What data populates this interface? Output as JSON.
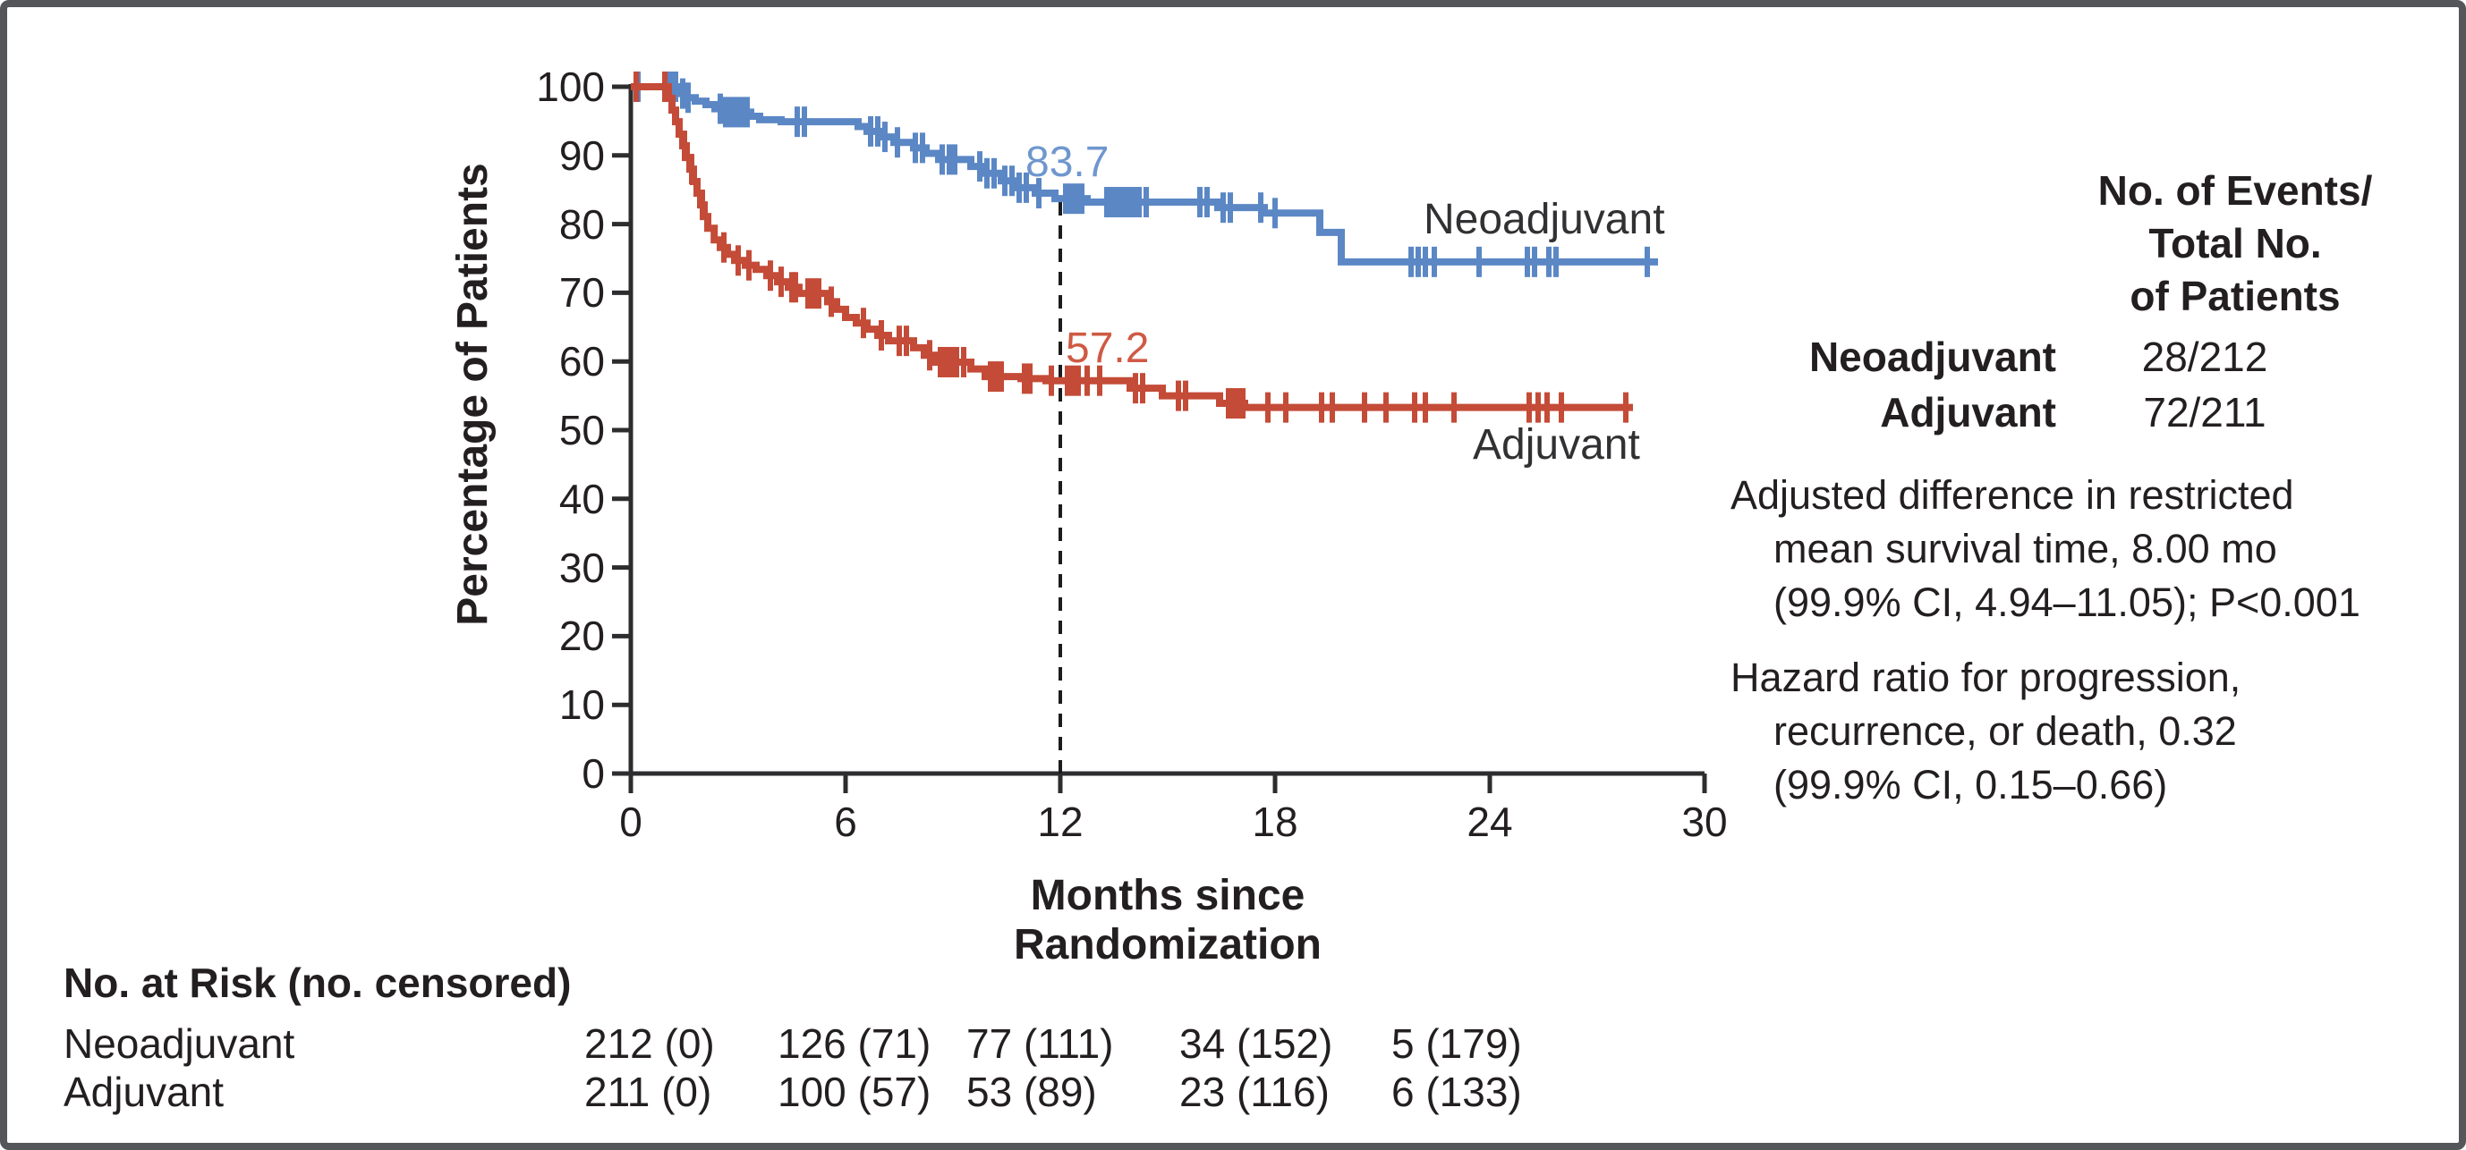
{
  "figure": {
    "background": "#ffffff",
    "border_color": "#55565a",
    "text_color": "#231f20",
    "axis_color": "#2d2d2f"
  },
  "chart_data": {
    "type": "line",
    "subtype": "kaplan-meier-step",
    "title": "",
    "xlabel": "Months since Randomization",
    "ylabel": "Percentage of Patients",
    "xlim": [
      0,
      30
    ],
    "ylim": [
      0,
      100
    ],
    "xticks": [
      0,
      6,
      12,
      18,
      24,
      30
    ],
    "yticks": [
      0,
      10,
      20,
      30,
      40,
      50,
      60,
      70,
      80,
      90,
      100
    ],
    "grid": false,
    "dashed_line": {
      "month": 12,
      "top_percent": 83.7,
      "color": "#1c1c1c"
    },
    "series": [
      {
        "name": "Neoadjuvant",
        "color": "#5b87c5",
        "label_color": "#6f97ce",
        "annotation": {
          "text": "83.7",
          "month": 12,
          "value": 83.7
        },
        "end_month": 28.7,
        "steps": [
          [
            0,
            100
          ],
          [
            1.35,
            99.0
          ],
          [
            1.55,
            98.4
          ],
          [
            1.8,
            97.9
          ],
          [
            2.1,
            97.4
          ],
          [
            2.35,
            96.8
          ],
          [
            2.6,
            96.3
          ],
          [
            3.35,
            95.7
          ],
          [
            3.6,
            95.2
          ],
          [
            4.2,
            94.9
          ],
          [
            6.35,
            94.2
          ],
          [
            6.6,
            93.5
          ],
          [
            7.0,
            92.7
          ],
          [
            7.35,
            91.9
          ],
          [
            7.9,
            91.1
          ],
          [
            8.25,
            90.3
          ],
          [
            8.6,
            89.4
          ],
          [
            9.5,
            88.4
          ],
          [
            9.9,
            87.4
          ],
          [
            10.35,
            86.3
          ],
          [
            10.7,
            85.3
          ],
          [
            11.3,
            84.5
          ],
          [
            11.85,
            83.7
          ],
          [
            12.75,
            83.2
          ],
          [
            16.4,
            82.4
          ],
          [
            17.7,
            81.6
          ],
          [
            19.25,
            78.8
          ],
          [
            19.85,
            74.5
          ]
        ],
        "censor_months": [
          0.2,
          1.1,
          1.25,
          1.45,
          1.6,
          2.5,
          2.65,
          2.8,
          2.95,
          3.1,
          3.25,
          4.65,
          4.85,
          6.7,
          6.9,
          7.1,
          7.45,
          7.95,
          8.15,
          8.7,
          8.9,
          9.05,
          9.75,
          9.95,
          10.15,
          10.45,
          10.65,
          10.85,
          11.05,
          11.4,
          12.15,
          12.3,
          12.45,
          12.6,
          13.3,
          13.45,
          13.6,
          13.75,
          13.9,
          14.05,
          14.2,
          14.4,
          15.9,
          16.1,
          16.55,
          16.75,
          17.6,
          18.0,
          21.8,
          22.0,
          22.2,
          22.45,
          23.7,
          25.05,
          25.25,
          25.65,
          25.85,
          28.4
        ]
      },
      {
        "name": "Adjuvant",
        "color": "#c44b37",
        "label_color": "#cf5a44",
        "annotation": {
          "text": "57.2",
          "month": 12,
          "value": 57.2
        },
        "end_month": 28.0,
        "steps": [
          [
            0,
            100
          ],
          [
            1.05,
            98.3
          ],
          [
            1.15,
            96.6
          ],
          [
            1.25,
            94.9
          ],
          [
            1.35,
            93.1
          ],
          [
            1.45,
            91.4
          ],
          [
            1.55,
            89.7
          ],
          [
            1.65,
            88.0
          ],
          [
            1.75,
            86.2
          ],
          [
            1.85,
            84.5
          ],
          [
            1.95,
            82.8
          ],
          [
            2.05,
            81.1
          ],
          [
            2.15,
            79.4
          ],
          [
            2.33,
            77.7
          ],
          [
            2.5,
            76.6
          ],
          [
            2.7,
            75.6
          ],
          [
            2.9,
            74.7
          ],
          [
            3.2,
            74.0
          ],
          [
            3.5,
            73.4
          ],
          [
            3.8,
            72.5
          ],
          [
            4.1,
            71.6
          ],
          [
            4.4,
            70.8
          ],
          [
            4.7,
            69.9
          ],
          [
            5.5,
            68.7
          ],
          [
            5.75,
            67.6
          ],
          [
            6.0,
            66.4
          ],
          [
            6.3,
            65.6
          ],
          [
            6.6,
            64.7
          ],
          [
            6.9,
            63.8
          ],
          [
            7.2,
            63.0
          ],
          [
            7.9,
            62.0
          ],
          [
            8.2,
            60.9
          ],
          [
            8.5,
            59.9
          ],
          [
            9.5,
            58.9
          ],
          [
            9.9,
            57.8
          ],
          [
            10.9,
            57.5
          ],
          [
            11.6,
            57.2
          ],
          [
            13.95,
            56.1
          ],
          [
            14.85,
            55.0
          ],
          [
            16.45,
            53.9
          ],
          [
            17.15,
            53.3
          ]
        ],
        "censor_months": [
          0.15,
          0.95,
          1.5,
          1.7,
          2.0,
          2.6,
          3.0,
          3.3,
          3.9,
          4.2,
          4.5,
          4.6,
          4.95,
          5.1,
          5.25,
          5.6,
          6.5,
          7.0,
          7.5,
          7.7,
          8.35,
          8.65,
          8.8,
          8.95,
          9.1,
          9.3,
          10.05,
          10.2,
          10.35,
          11.0,
          11.15,
          11.75,
          12.2,
          12.35,
          12.5,
          12.75,
          13.1,
          14.1,
          14.3,
          15.3,
          15.5,
          16.7,
          16.85,
          17.0,
          17.1,
          17.8,
          18.3,
          19.3,
          19.6,
          20.5,
          21.1,
          21.9,
          22.2,
          23.0,
          25.1,
          25.35,
          25.6,
          26.0,
          27.8
        ]
      }
    ]
  },
  "side_panel": {
    "header_lines": [
      "No. of Events/",
      "Total No.",
      "of Patients"
    ],
    "rows": [
      {
        "label": "Neoadjuvant",
        "value": "28/212"
      },
      {
        "label": "Adjuvant",
        "value": "72/211"
      }
    ],
    "stat_blocks": [
      {
        "lines": [
          {
            "text": "Adjusted difference in restricted",
            "indent": false
          },
          {
            "text": "mean survival time, 8.00 mo",
            "indent": true
          },
          {
            "text": "(99.9% CI, 4.94–11.05); P<0.001",
            "indent": true
          }
        ]
      },
      {
        "lines": [
          {
            "text": "Hazard ratio for progression,",
            "indent": false
          },
          {
            "text": "recurrence, or death, 0.32",
            "indent": true
          },
          {
            "text": "(99.9% CI, 0.15–0.66)",
            "indent": true
          }
        ]
      }
    ]
  },
  "risk_table": {
    "title": "No. at Risk (no. censored)",
    "rows": [
      {
        "label": "Neoadjuvant",
        "values": [
          "212 (0)",
          "126 (71)",
          "77 (111)",
          "34 (152)",
          "5 (179)"
        ]
      },
      {
        "label": "Adjuvant",
        "values": [
          "211 (0)",
          "100 (57)",
          "53 (89)",
          "23 (116)",
          "6 (133)"
        ]
      }
    ]
  }
}
